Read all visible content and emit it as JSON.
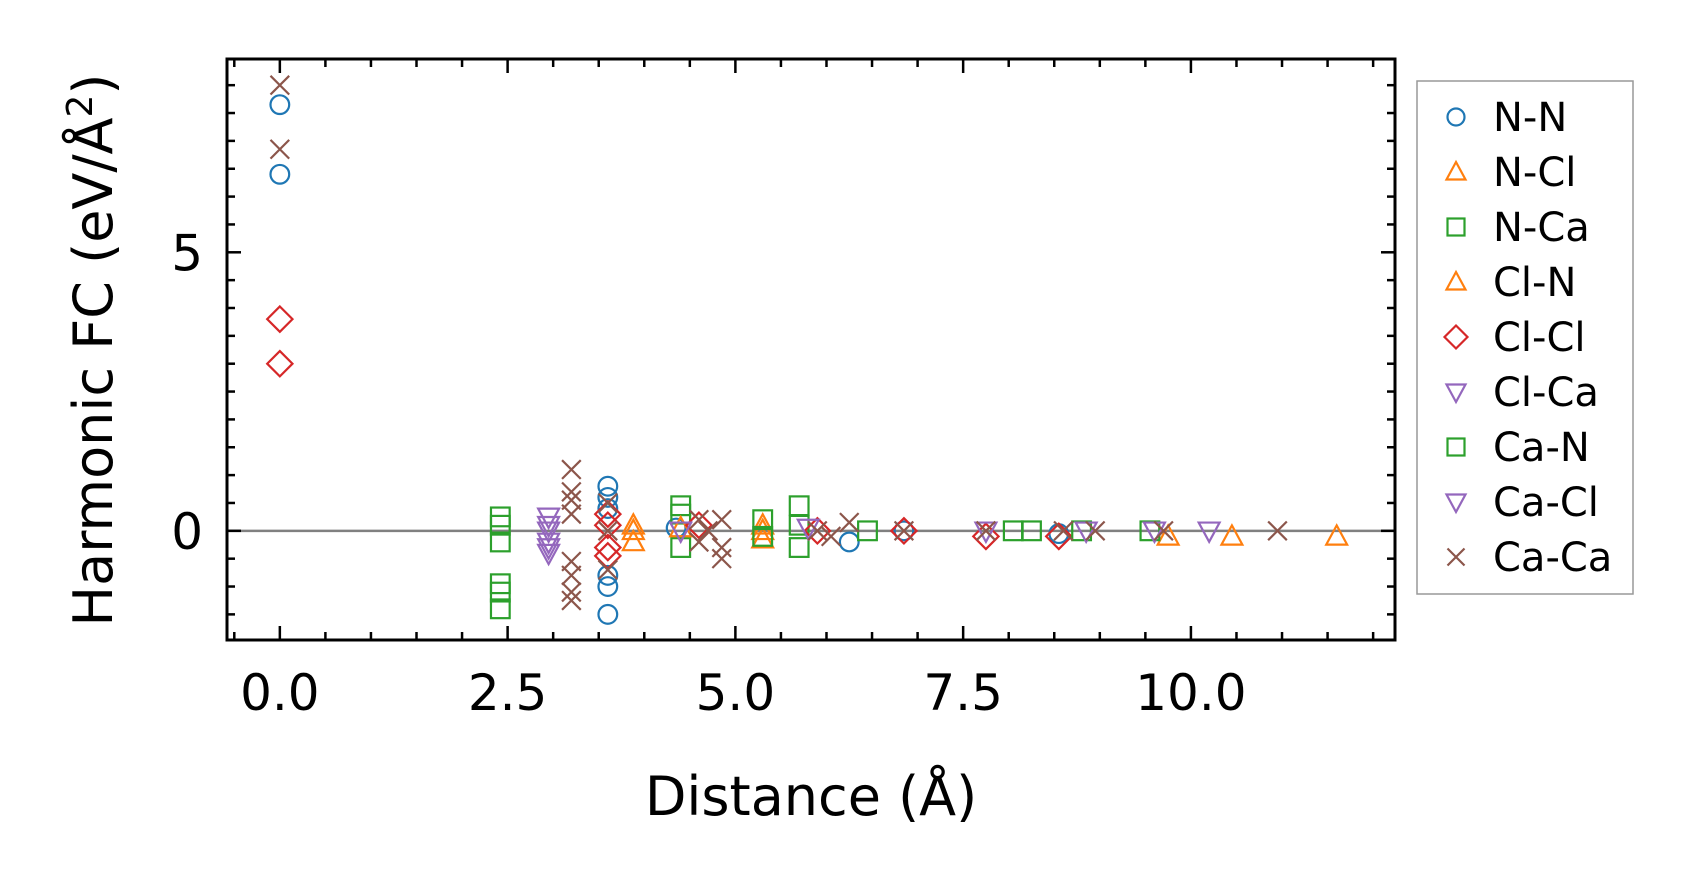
{
  "chart_data": {
    "type": "scatter",
    "title": "",
    "xlabel": "Distance (Å)",
    "ylabel": "Harmonic FC (eV/Å²)",
    "ylabel_parts": {
      "main": "Harmonic FC (eV/Å",
      "sup": "2",
      "end": ")"
    },
    "xlim": [
      -0.58,
      12.24
    ],
    "ylim": [
      -1.96,
      8.47
    ],
    "xticks": [
      {
        "v": 0,
        "label": "0.0"
      },
      {
        "v": 2.5,
        "label": "2.5"
      },
      {
        "v": 5,
        "label": "5.0"
      },
      {
        "v": 7.5,
        "label": "7.5"
      },
      {
        "v": 10,
        "label": "10.0"
      }
    ],
    "yticks": [
      {
        "v": 0,
        "label": "0"
      },
      {
        "v": 5,
        "label": "5"
      }
    ],
    "zero_line": true,
    "legend_position": "outside-right",
    "series": [
      {
        "name": "N-N",
        "marker": "circle",
        "color": "#1f77b4",
        "points": [
          [
            0,
            7.65
          ],
          [
            0,
            6.4
          ],
          [
            3.6,
            0.8
          ],
          [
            3.6,
            0.6
          ],
          [
            3.6,
            0.4
          ],
          [
            3.6,
            -0.8
          ],
          [
            3.6,
            -1.0
          ],
          [
            3.6,
            -1.5
          ],
          [
            4.35,
            0.05
          ],
          [
            6.25,
            -0.2
          ],
          [
            6.85,
            0
          ],
          [
            8.55,
            -0.05
          ]
        ]
      },
      {
        "name": "N-Cl",
        "marker": "triangle-up",
        "color": "#ff7f0e",
        "points": [
          [
            3.88,
            0.1
          ],
          [
            3.88,
            -0.2
          ],
          [
            5.3,
            0.1
          ],
          [
            5.3,
            -0.15
          ],
          [
            9.75,
            -0.1
          ],
          [
            10.45,
            -0.1
          ],
          [
            11.6,
            -0.1
          ]
        ]
      },
      {
        "name": "N-Ca",
        "marker": "square",
        "color": "#2ca02c",
        "points": [
          [
            2.42,
            0.25
          ],
          [
            2.42,
            0.1
          ],
          [
            2.42,
            -0.2
          ],
          [
            2.42,
            -0.95
          ],
          [
            2.42,
            -1.1
          ],
          [
            2.42,
            -1.4
          ],
          [
            4.4,
            0.45
          ],
          [
            4.4,
            0.3
          ],
          [
            4.4,
            -0.3
          ],
          [
            5.7,
            0.45
          ],
          [
            5.7,
            0.1
          ],
          [
            5.7,
            -0.3
          ]
        ]
      },
      {
        "name": "Cl-N",
        "marker": "triangle-up",
        "color": "#ff7f0e",
        "points": [
          [
            3.88,
            0
          ],
          [
            5.3,
            0
          ],
          [
            4.4,
            0.05
          ]
        ]
      },
      {
        "name": "Cl-Cl",
        "marker": "diamond",
        "color": "#d62728",
        "points": [
          [
            0,
            3.8
          ],
          [
            0,
            3.0
          ],
          [
            3.6,
            0.3
          ],
          [
            3.6,
            0.1
          ],
          [
            3.6,
            -0.3
          ],
          [
            3.6,
            -0.45
          ],
          [
            4.6,
            0.1
          ],
          [
            5.9,
            0
          ],
          [
            6.85,
            0
          ],
          [
            7.75,
            -0.1
          ],
          [
            8.55,
            -0.1
          ]
        ]
      },
      {
        "name": "Cl-Ca",
        "marker": "triangle-down",
        "color": "#9467bd",
        "points": [
          [
            2.95,
            0.25
          ],
          [
            2.95,
            0
          ],
          [
            2.95,
            -0.2
          ],
          [
            2.95,
            -0.4
          ],
          [
            4.4,
            0
          ],
          [
            5.8,
            0.05
          ],
          [
            7.75,
            0
          ]
        ]
      },
      {
        "name": "Ca-N",
        "marker": "square",
        "color": "#2ca02c",
        "points": [
          [
            5.3,
            0.2
          ],
          [
            5.3,
            -0.1
          ],
          [
            6.45,
            0
          ],
          [
            8.05,
            0
          ],
          [
            8.25,
            0
          ],
          [
            8.8,
            0
          ],
          [
            9.55,
            0
          ]
        ]
      },
      {
        "name": "Ca-Cl",
        "marker": "triangle-down",
        "color": "#9467bd",
        "points": [
          [
            2.95,
            0.1
          ],
          [
            2.95,
            -0.3
          ],
          [
            8.85,
            0
          ],
          [
            9.6,
            0
          ],
          [
            10.2,
            0
          ]
        ]
      },
      {
        "name": "Ca-Ca",
        "marker": "x",
        "color": "#8c564b",
        "points": [
          [
            0,
            8.0
          ],
          [
            0,
            6.85
          ],
          [
            3.2,
            1.1
          ],
          [
            3.2,
            0.7
          ],
          [
            3.2,
            0.55
          ],
          [
            3.2,
            0.3
          ],
          [
            3.2,
            -0.55
          ],
          [
            3.2,
            -0.8
          ],
          [
            3.2,
            -1.1
          ],
          [
            3.2,
            -1.25
          ],
          [
            3.6,
            0.5
          ],
          [
            3.6,
            0
          ],
          [
            3.6,
            -0.7
          ],
          [
            4.6,
            0.2
          ],
          [
            4.6,
            -0.2
          ],
          [
            4.7,
            0
          ],
          [
            4.85,
            0.2
          ],
          [
            4.85,
            -0.3
          ],
          [
            4.85,
            -0.5
          ],
          [
            5.9,
            0
          ],
          [
            6.05,
            -0.1
          ],
          [
            6.25,
            0.15
          ],
          [
            6.85,
            0
          ],
          [
            7.75,
            0
          ],
          [
            8.6,
            0
          ],
          [
            8.95,
            0
          ],
          [
            9.7,
            0
          ],
          [
            10.95,
            0
          ]
        ]
      }
    ]
  }
}
